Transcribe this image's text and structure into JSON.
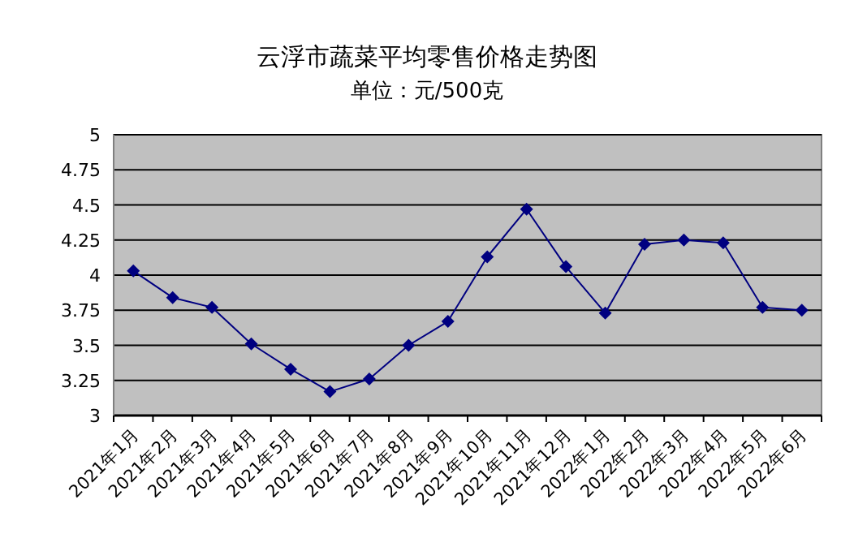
{
  "chart_data": {
    "type": "line",
    "title": "云浮市蔬菜平均零售价格走势图",
    "subtitle": "单位：元/500克",
    "categories": [
      "2021年1月",
      "2021年2月",
      "2021年3月",
      "2021年4月",
      "2021年5月",
      "2021年6月",
      "2021年7月",
      "2021年8月",
      "2021年9月",
      "2021年10月",
      "2021年11月",
      "2021年12月",
      "2022年1月",
      "2022年2月",
      "2022年3月",
      "2022年4月",
      "2022年5月",
      "2022年6月"
    ],
    "series": [
      {
        "color": "#000080",
        "values": [
          4.03,
          3.84,
          3.77,
          3.51,
          3.33,
          3.17,
          3.26,
          3.5,
          3.67,
          4.13,
          4.47,
          4.06,
          3.73,
          4.22,
          4.25,
          4.23,
          3.77,
          3.75
        ]
      }
    ],
    "ylim": [
      3,
      5
    ],
    "yticks": [
      3,
      3.25,
      3.5,
      3.75,
      4,
      4.25,
      4.5,
      4.75,
      5
    ],
    "grid": "y",
    "marker": "diamond"
  }
}
